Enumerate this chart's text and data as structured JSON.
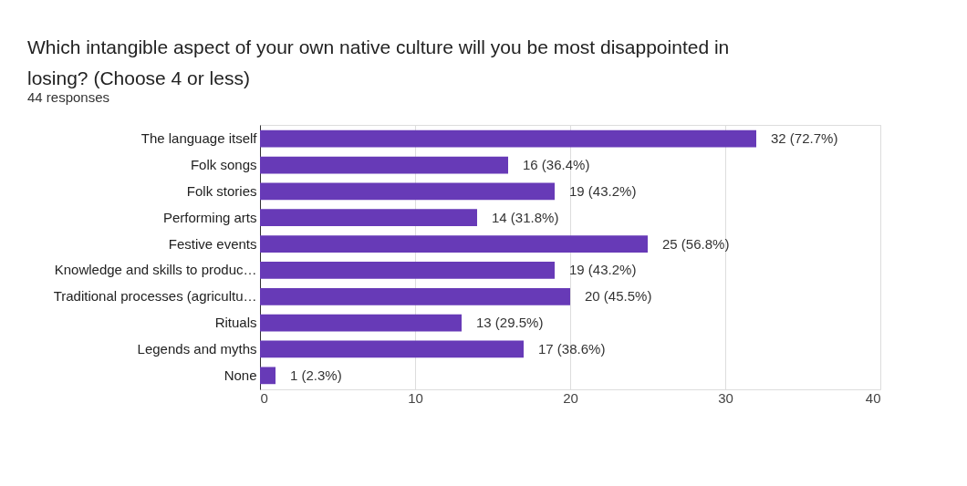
{
  "chart_data": {
    "type": "bar",
    "orientation": "horizontal",
    "title": "Which intangible aspect of your own native culture will you be most disappointed in losing?    (Choose 4 or less)",
    "subtitle": "44 responses",
    "categories": [
      "The language itself",
      "Folk songs",
      "Folk stories",
      "Performing arts",
      "Festive events",
      "Knowledge and skills to produc…",
      "Traditional processes (agricultu…",
      "Rituals",
      "Legends and myths",
      "None"
    ],
    "values": [
      32,
      16,
      19,
      14,
      25,
      19,
      20,
      13,
      17,
      1
    ],
    "value_labels": [
      "32 (72.7%)",
      "16 (36.4%)",
      "19 (43.2%)",
      "14 (31.8%)",
      "25 (56.8%)",
      "19 (43.2%)",
      "20 (45.5%)",
      "13 (29.5%)",
      "17 (38.6%)",
      "1 (2.3%)"
    ],
    "color": "#673ab7",
    "xlim": [
      0,
      40
    ],
    "xticks": [
      0,
      10,
      20,
      30,
      40
    ],
    "grid": "x"
  }
}
